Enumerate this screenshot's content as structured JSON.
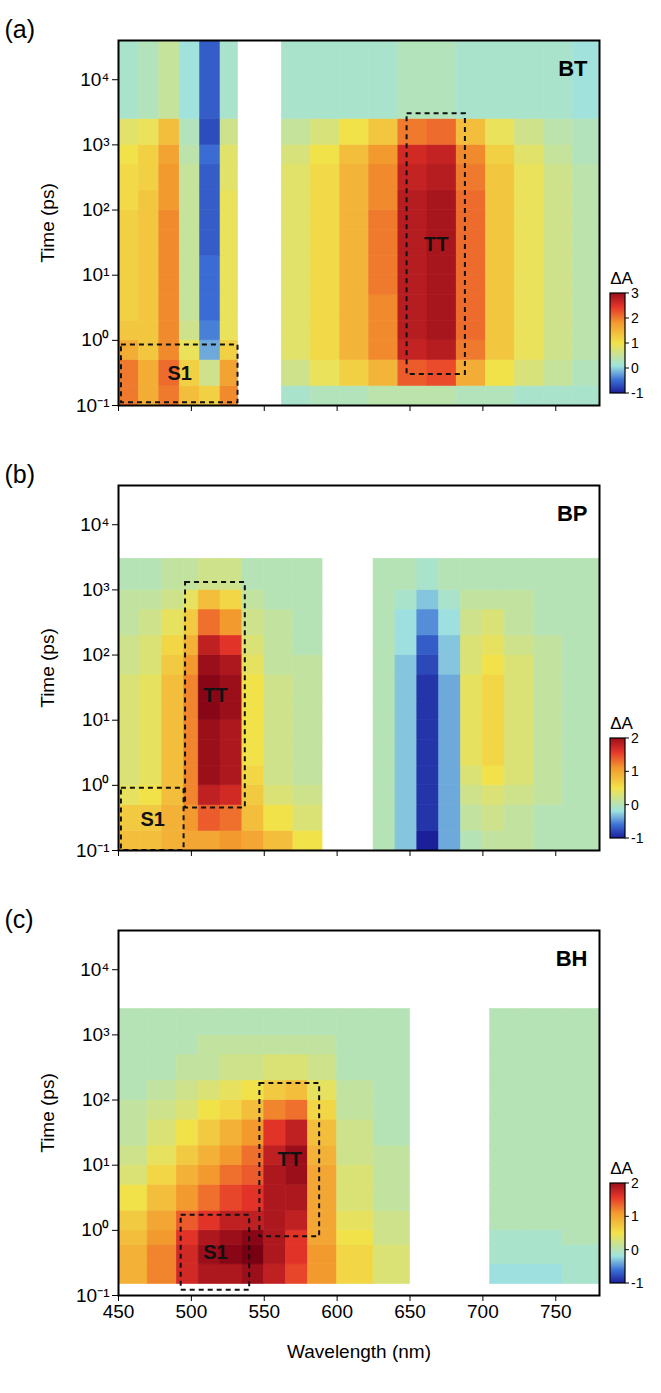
{
  "chart_data": [
    {
      "type": "heatmap",
      "panel_label": "(a)",
      "title": "BT",
      "y_label": "Time (ps)",
      "tick_labels": "y",
      "log": "y",
      "xlim": [
        450,
        780
      ],
      "xticks": [
        450,
        500,
        550,
        600,
        650,
        700,
        750
      ],
      "ylim": [
        0.1,
        40000
      ],
      "yticks": [
        {
          "value": 0.1,
          "label": "10⁻¹"
        },
        {
          "value": 1,
          "label": "10⁰"
        },
        {
          "value": 10,
          "label": "10¹"
        },
        {
          "value": 100,
          "label": "10²"
        },
        {
          "value": 1000,
          "label": "10³"
        },
        {
          "value": 10000,
          "label": "10⁴"
        }
      ],
      "colorbar": {
        "label": "ΔA",
        "range": [
          -1,
          3
        ],
        "ticks": [
          -1,
          0,
          1,
          2,
          3
        ]
      },
      "cells": {
        "x_edges": [
          450,
          464,
          478,
          492,
          506,
          520,
          532,
          562,
          582,
          602,
          622,
          642,
          662,
          682,
          702,
          722,
          742,
          762,
          780
        ],
        "y_edges": [
          0.1,
          0.2,
          0.5,
          1,
          2,
          5,
          10,
          20,
          50,
          100,
          200,
          500,
          1000,
          2500,
          40000
        ],
        "values": [
          [
            2.0,
            1.6,
            2.0,
            1.4,
            1.2,
            1.9,
            null,
            0.2,
            0.3,
            0.3,
            0.4,
            0.4,
            0.4,
            0.3,
            0.3,
            0.2,
            0.2,
            0.2
          ],
          [
            2.0,
            1.6,
            2.1,
            1.2,
            0.6,
            1.7,
            null,
            0.6,
            0.9,
            1.2,
            1.5,
            2.2,
            2.3,
            1.6,
            1.0,
            0.7,
            0.5,
            0.3
          ],
          [
            1.6,
            1.3,
            1.9,
            0.9,
            -0.2,
            1.2,
            null,
            0.8,
            1.1,
            1.5,
            1.9,
            2.7,
            2.8,
            2.0,
            1.3,
            0.9,
            0.6,
            0.4
          ],
          [
            1.3,
            1.3,
            1.9,
            0.6,
            -0.4,
            0.9,
            null,
            0.8,
            1.1,
            1.5,
            1.9,
            2.8,
            2.9,
            2.1,
            1.3,
            0.9,
            0.6,
            0.4
          ],
          [
            1.2,
            1.3,
            1.9,
            0.5,
            -0.5,
            0.9,
            null,
            0.8,
            1.1,
            1.5,
            1.9,
            2.8,
            2.9,
            2.1,
            1.3,
            0.9,
            0.6,
            0.4
          ],
          [
            1.2,
            1.3,
            1.9,
            0.5,
            -0.5,
            0.9,
            null,
            0.8,
            1.1,
            1.5,
            2.0,
            2.8,
            2.9,
            2.1,
            1.3,
            0.9,
            0.6,
            0.4
          ],
          [
            1.2,
            1.3,
            1.9,
            0.5,
            -0.5,
            0.9,
            null,
            0.8,
            1.1,
            1.5,
            2.0,
            2.8,
            2.9,
            2.1,
            1.3,
            0.9,
            0.6,
            0.4
          ],
          [
            1.2,
            1.3,
            1.9,
            0.5,
            -0.6,
            0.9,
            null,
            0.8,
            1.1,
            1.5,
            2.0,
            2.8,
            2.9,
            2.1,
            1.3,
            0.9,
            0.6,
            0.4
          ],
          [
            1.2,
            1.3,
            1.9,
            0.5,
            -0.6,
            0.9,
            null,
            0.8,
            1.1,
            1.5,
            2.0,
            2.8,
            2.9,
            2.1,
            1.3,
            0.9,
            0.6,
            0.4
          ],
          [
            1.1,
            1.3,
            1.8,
            0.5,
            -0.6,
            0.9,
            null,
            0.8,
            1.1,
            1.5,
            1.9,
            2.8,
            2.9,
            2.1,
            1.3,
            0.9,
            0.6,
            0.4
          ],
          [
            1.1,
            1.2,
            1.8,
            0.5,
            -0.6,
            0.8,
            null,
            0.8,
            1.1,
            1.5,
            1.9,
            2.7,
            2.8,
            2.0,
            1.3,
            0.9,
            0.6,
            0.4
          ],
          [
            1.0,
            1.2,
            1.7,
            0.4,
            -0.5,
            0.8,
            null,
            0.7,
            1.0,
            1.4,
            1.8,
            2.6,
            2.7,
            1.9,
            1.2,
            0.8,
            0.5,
            0.3
          ],
          [
            0.8,
            0.9,
            1.4,
            0.3,
            -0.7,
            0.6,
            null,
            0.5,
            0.7,
            1.0,
            1.3,
            2.0,
            2.1,
            1.4,
            0.9,
            0.6,
            0.4,
            0.3
          ],
          [
            0.2,
            0.3,
            0.5,
            0.1,
            -0.6,
            0.2,
            null,
            0.2,
            0.2,
            0.2,
            0.2,
            0.3,
            0.3,
            0.2,
            0.2,
            0.2,
            0.2,
            0.1
          ]
        ]
      },
      "annotations": [
        {
          "text": "S1",
          "x": [
            452,
            532
          ],
          "y": [
            0.11,
            0.85
          ]
        },
        {
          "text": "TT",
          "x": [
            648,
            688
          ],
          "y": [
            0.3,
            3000
          ]
        }
      ]
    },
    {
      "type": "heatmap",
      "panel_label": "(b)",
      "title": "BP",
      "y_label": "Time (ps)",
      "tick_labels": "y",
      "log": "y",
      "xlim": [
        450,
        780
      ],
      "xticks": [
        450,
        500,
        550,
        600,
        650,
        700,
        750
      ],
      "ylim": [
        0.1,
        40000
      ],
      "yticks": [
        {
          "value": 0.1,
          "label": "10⁻¹"
        },
        {
          "value": 1,
          "label": "10⁰"
        },
        {
          "value": 10,
          "label": "10¹"
        },
        {
          "value": 100,
          "label": "10²"
        },
        {
          "value": 1000,
          "label": "10³"
        },
        {
          "value": 10000,
          "label": "10⁴"
        }
      ],
      "colorbar": {
        "label": "ΔA",
        "range": [
          -1,
          2
        ],
        "ticks": [
          -1,
          0,
          1,
          2
        ]
      },
      "cells": {
        "x_edges": [
          450,
          465,
          480,
          495,
          505,
          520,
          535,
          550,
          570,
          590,
          625,
          640,
          655,
          670,
          685,
          700,
          715,
          735,
          755,
          780
        ],
        "y_edges": [
          0.1,
          0.2,
          0.5,
          1,
          2,
          5,
          10,
          20,
          50,
          100,
          200,
          500,
          1000,
          3000
        ],
        "values": [
          [
            0.8,
            0.8,
            0.9,
            1.0,
            1.0,
            1.1,
            1.0,
            0.8,
            0.5,
            null,
            0.0,
            -0.3,
            -1.0,
            -0.4,
            0.0,
            0.1,
            0.1,
            0.0,
            0.0
          ],
          [
            0.7,
            0.7,
            0.9,
            1.1,
            1.4,
            1.3,
            0.8,
            0.5,
            0.3,
            null,
            0.0,
            -0.3,
            -0.9,
            -0.4,
            0.1,
            0.2,
            0.1,
            0.0,
            0.0
          ],
          [
            0.4,
            0.5,
            0.8,
            1.2,
            1.8,
            1.7,
            0.7,
            0.3,
            0.2,
            null,
            0.0,
            -0.3,
            -0.9,
            -0.4,
            0.2,
            0.3,
            0.2,
            0.1,
            0.0
          ],
          [
            0.3,
            0.4,
            0.8,
            1.2,
            2.0,
            1.9,
            0.6,
            0.2,
            0.1,
            null,
            0.0,
            -0.3,
            -0.9,
            -0.4,
            0.3,
            0.5,
            0.3,
            0.1,
            0.0
          ],
          [
            0.3,
            0.4,
            0.8,
            1.2,
            2.0,
            1.9,
            0.5,
            0.2,
            0.1,
            null,
            0.0,
            -0.3,
            -0.9,
            -0.4,
            0.4,
            0.6,
            0.3,
            0.1,
            0.0
          ],
          [
            0.3,
            0.4,
            0.8,
            1.2,
            2.0,
            1.9,
            0.5,
            0.2,
            0.1,
            null,
            0.0,
            -0.3,
            -0.9,
            -0.4,
            0.4,
            0.6,
            0.3,
            0.1,
            0.0
          ],
          [
            0.3,
            0.4,
            0.8,
            1.2,
            2.1,
            2.0,
            0.5,
            0.2,
            0.1,
            null,
            0.0,
            -0.3,
            -0.9,
            -0.4,
            0.4,
            0.6,
            0.3,
            0.1,
            0.0
          ],
          [
            0.3,
            0.4,
            0.8,
            1.2,
            2.1,
            2.0,
            0.5,
            0.2,
            0.1,
            null,
            0.0,
            -0.3,
            -0.9,
            -0.4,
            0.4,
            0.6,
            0.3,
            0.1,
            0.0
          ],
          [
            0.2,
            0.3,
            0.7,
            1.1,
            2.0,
            1.9,
            0.4,
            0.1,
            0.1,
            null,
            0.0,
            -0.3,
            -0.8,
            -0.3,
            0.3,
            0.5,
            0.3,
            0.1,
            0.0
          ],
          [
            0.2,
            0.3,
            0.6,
            0.9,
            1.8,
            1.6,
            0.3,
            0.1,
            0.0,
            null,
            0.0,
            -0.2,
            -0.7,
            -0.3,
            0.3,
            0.4,
            0.2,
            0.1,
            0.0
          ],
          [
            0.1,
            0.2,
            0.4,
            0.7,
            1.3,
            1.1,
            0.2,
            0.1,
            0.0,
            null,
            0.0,
            -0.2,
            -0.5,
            -0.2,
            0.2,
            0.3,
            0.1,
            0.0,
            0.0
          ],
          [
            0.1,
            0.1,
            0.2,
            0.4,
            0.8,
            0.6,
            0.1,
            0.0,
            0.0,
            null,
            0.0,
            -0.1,
            -0.3,
            -0.1,
            0.1,
            0.1,
            0.1,
            0.0,
            0.0
          ],
          [
            0.0,
            0.0,
            0.1,
            0.1,
            0.2,
            0.2,
            0.0,
            0.0,
            0.0,
            null,
            0.0,
            0.0,
            -0.1,
            0.0,
            0.0,
            0.0,
            0.0,
            0.0,
            0.0
          ]
        ]
      },
      "annotations": [
        {
          "text": "S1",
          "x": [
            452,
            495
          ],
          "y": [
            0.1,
            0.9
          ]
        },
        {
          "text": "TT",
          "x": [
            496,
            537
          ],
          "y": [
            0.45,
            1300
          ]
        }
      ]
    },
    {
      "type": "heatmap",
      "panel_label": "(c)",
      "title": "BH",
      "y_label": "Time (ps)",
      "x_label": "Wavelength (nm)",
      "log": "y",
      "xlim": [
        450,
        780
      ],
      "xticks": [
        450,
        500,
        550,
        600,
        650,
        700,
        750
      ],
      "ylim": [
        0.1,
        40000
      ],
      "yticks": [
        {
          "value": 0.1,
          "label": "10⁻¹"
        },
        {
          "value": 1,
          "label": "10⁰"
        },
        {
          "value": 10,
          "label": "10¹"
        },
        {
          "value": 100,
          "label": "10²"
        },
        {
          "value": 1000,
          "label": "10³"
        },
        {
          "value": 10000,
          "label": "10⁴"
        }
      ],
      "colorbar": {
        "label": "ΔA",
        "range": [
          -1,
          2
        ],
        "ticks": [
          -1,
          0,
          1,
          2
        ]
      },
      "cells": {
        "x_edges": [
          450,
          470,
          490,
          505,
          520,
          535,
          550,
          565,
          580,
          600,
          625,
          650,
          705,
          730,
          755,
          780
        ],
        "y_edges": [
          0.15,
          0.3,
          0.6,
          1,
          2,
          5,
          10,
          20,
          50,
          100,
          200,
          500,
          1000,
          2500
        ],
        "values": [
          [
            0.9,
            1.2,
            1.7,
            1.9,
            1.9,
            2.0,
            1.8,
            1.5,
            1.1,
            0.6,
            0.3,
            null,
            -0.2,
            -0.2,
            -0.1
          ],
          [
            0.9,
            1.2,
            1.7,
            2.0,
            2.1,
            2.2,
            1.9,
            1.6,
            1.1,
            0.6,
            0.3,
            null,
            -0.1,
            -0.1,
            -0.1
          ],
          [
            0.8,
            1.1,
            1.6,
            1.9,
            2.0,
            2.1,
            1.9,
            1.6,
            1.0,
            0.5,
            0.2,
            null,
            -0.1,
            -0.1,
            0.0
          ],
          [
            0.7,
            1.0,
            1.4,
            1.6,
            1.8,
            1.8,
            1.9,
            1.8,
            1.0,
            0.4,
            0.2,
            null,
            0.0,
            0.0,
            0.0
          ],
          [
            0.5,
            0.8,
            1.1,
            1.3,
            1.5,
            1.6,
            1.9,
            1.9,
            1.0,
            0.3,
            0.1,
            null,
            0.0,
            0.0,
            0.0
          ],
          [
            0.3,
            0.6,
            0.9,
            1.1,
            1.3,
            1.4,
            1.9,
            2.0,
            1.0,
            0.3,
            0.1,
            null,
            0.0,
            0.0,
            0.0
          ],
          [
            0.2,
            0.4,
            0.7,
            0.9,
            1.1,
            1.3,
            1.8,
            2.0,
            0.9,
            0.2,
            0.1,
            null,
            0.0,
            0.0,
            0.0
          ],
          [
            0.1,
            0.3,
            0.5,
            0.7,
            0.9,
            1.1,
            1.6,
            1.8,
            0.8,
            0.2,
            0.0,
            null,
            0.0,
            0.0,
            0.0
          ],
          [
            0.1,
            0.2,
            0.3,
            0.5,
            0.6,
            0.8,
            1.2,
            1.3,
            0.6,
            0.1,
            0.0,
            null,
            0.0,
            0.0,
            0.0
          ],
          [
            0.0,
            0.1,
            0.2,
            0.3,
            0.4,
            0.5,
            0.7,
            0.8,
            0.4,
            0.1,
            0.0,
            null,
            0.0,
            0.0,
            0.0
          ],
          [
            0.0,
            0.0,
            0.1,
            0.1,
            0.2,
            0.2,
            0.3,
            0.3,
            0.2,
            0.0,
            0.0,
            null,
            0.0,
            0.0,
            0.0
          ],
          [
            0.0,
            0.0,
            0.0,
            0.1,
            0.1,
            0.1,
            0.1,
            0.1,
            0.1,
            0.0,
            0.0,
            null,
            0.0,
            0.0,
            0.0
          ],
          [
            0.0,
            0.0,
            0.0,
            0.0,
            0.0,
            0.0,
            0.0,
            0.0,
            0.0,
            0.0,
            0.0,
            null,
            0.0,
            0.0,
            0.0
          ]
        ]
      },
      "annotations": [
        {
          "text": "S1",
          "x": [
            493,
            540
          ],
          "y": [
            0.12,
            1.7
          ]
        },
        {
          "text": "TT",
          "x": [
            547,
            588
          ],
          "y": [
            0.8,
            180
          ]
        }
      ]
    }
  ]
}
